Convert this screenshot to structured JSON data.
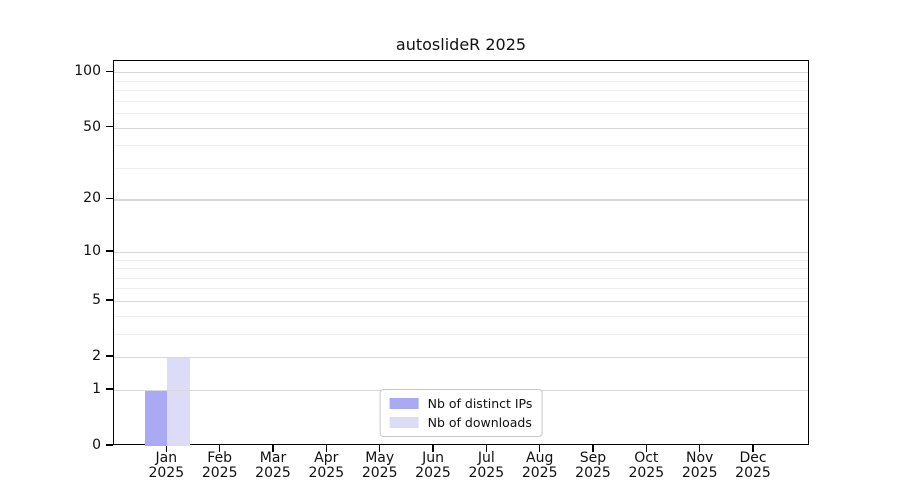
{
  "title": "autoslideR 2025",
  "colors": {
    "background": "#ffffff",
    "axis": "#000000",
    "text": "#111111",
    "grid_major": "#d8d8d8",
    "grid_minor": "#efefef",
    "legend_border": "#c9c9c9",
    "bar_distinct_ips": "#a9a9f4",
    "bar_downloads": "#dcdcf8"
  },
  "chart_data": {
    "type": "bar",
    "title": "autoslideR 2025",
    "xlabel": "",
    "ylabel": "",
    "yscale": "log1p",
    "ylim": [
      0,
      115
    ],
    "yticks": [
      0,
      1,
      2,
      5,
      10,
      20,
      50,
      100
    ],
    "minor_yticks": [
      3,
      4,
      6,
      7,
      8,
      9,
      30,
      40,
      60,
      70,
      80,
      90
    ],
    "grid": true,
    "legend_position": "lower center",
    "categories": [
      {
        "month": "Jan",
        "year": "2025"
      },
      {
        "month": "Feb",
        "year": "2025"
      },
      {
        "month": "Mar",
        "year": "2025"
      },
      {
        "month": "Apr",
        "year": "2025"
      },
      {
        "month": "May",
        "year": "2025"
      },
      {
        "month": "Jun",
        "year": "2025"
      },
      {
        "month": "Jul",
        "year": "2025"
      },
      {
        "month": "Aug",
        "year": "2025"
      },
      {
        "month": "Sep",
        "year": "2025"
      },
      {
        "month": "Oct",
        "year": "2025"
      },
      {
        "month": "Nov",
        "year": "2025"
      },
      {
        "month": "Dec",
        "year": "2025"
      }
    ],
    "series": [
      {
        "name": "Nb of distinct IPs",
        "color": "#a9a9f4",
        "values": [
          1,
          0,
          0,
          0,
          0,
          0,
          0,
          0,
          0,
          0,
          0,
          0
        ]
      },
      {
        "name": "Nb of downloads",
        "color": "#dcdcf8",
        "values": [
          2,
          0,
          0,
          0,
          0,
          0,
          0,
          0,
          0,
          0,
          0,
          0
        ]
      }
    ]
  }
}
